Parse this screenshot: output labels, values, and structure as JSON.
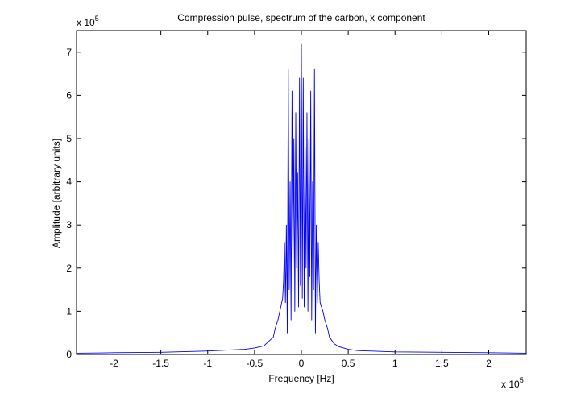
{
  "chart_data": {
    "type": "line",
    "title": "Compression pulse, spectrum of the carbon, x component",
    "xlabel": "Frequency [Hz]",
    "ylabel": "Amplitude [arbitrary units]",
    "x_multiplier_label": "x 10",
    "x_multiplier_exponent": "5",
    "y_multiplier_label": "x 10",
    "y_multiplier_exponent": "5",
    "xlim": [
      -2.4,
      2.4
    ],
    "ylim": [
      0,
      7.5
    ],
    "x_ticks": [
      {
        "value": -2,
        "label": "-2"
      },
      {
        "value": -1.5,
        "label": "-1.5"
      },
      {
        "value": -1,
        "label": "-1"
      },
      {
        "value": -0.5,
        "label": "-0.5"
      },
      {
        "value": 0,
        "label": "0"
      },
      {
        "value": 0.5,
        "label": "0.5"
      },
      {
        "value": 1,
        "label": "1"
      },
      {
        "value": 1.5,
        "label": "1.5"
      },
      {
        "value": 2,
        "label": "2"
      }
    ],
    "y_ticks": [
      {
        "value": 0,
        "label": "0"
      },
      {
        "value": 1,
        "label": "1"
      },
      {
        "value": 2,
        "label": "2"
      },
      {
        "value": 3,
        "label": "3"
      },
      {
        "value": 4,
        "label": "4"
      },
      {
        "value": 5,
        "label": "5"
      },
      {
        "value": 6,
        "label": "6"
      },
      {
        "value": 7,
        "label": "7"
      }
    ],
    "grid": false,
    "series_color": "#0000ff",
    "series": [
      {
        "x": [
          -2.4,
          -2.0,
          -1.5,
          -1.0,
          -0.6,
          -0.5,
          -0.4,
          -0.35,
          -0.3,
          -0.28,
          -0.25,
          -0.23,
          -0.2,
          -0.19,
          -0.18,
          -0.17,
          -0.16,
          -0.15,
          -0.14,
          -0.13,
          -0.12,
          -0.11,
          -0.1,
          -0.09,
          -0.08,
          -0.07,
          -0.06,
          -0.05,
          -0.04,
          -0.03,
          -0.02,
          -0.01,
          0,
          0.01,
          0.02,
          0.03,
          0.04,
          0.05,
          0.06,
          0.07,
          0.08,
          0.09,
          0.1,
          0.11,
          0.12,
          0.13,
          0.14,
          0.15,
          0.16,
          0.17,
          0.18,
          0.19,
          0.2,
          0.23,
          0.25,
          0.28,
          0.3,
          0.35,
          0.4,
          0.5,
          0.6,
          1.0,
          1.5,
          2.0,
          2.4
        ],
        "y": [
          0.03,
          0.04,
          0.05,
          0.08,
          0.12,
          0.15,
          0.2,
          0.3,
          0.4,
          0.6,
          0.8,
          1.0,
          1.3,
          1.7,
          2.6,
          1.2,
          3.0,
          0.5,
          6.6,
          1.5,
          4.0,
          0.8,
          6.1,
          1.8,
          5.0,
          1.0,
          5.6,
          2.0,
          4.2,
          1.1,
          6.4,
          1.6,
          7.2,
          1.3,
          6.4,
          1.1,
          4.8,
          2.0,
          5.6,
          1.0,
          5.0,
          1.8,
          6.1,
          0.8,
          4.0,
          1.5,
          6.6,
          0.5,
          3.0,
          1.2,
          2.6,
          1.7,
          1.2,
          1.0,
          0.8,
          0.6,
          0.4,
          0.25,
          0.18,
          0.12,
          0.09,
          0.06,
          0.05,
          0.04,
          0.03
        ]
      }
    ]
  }
}
